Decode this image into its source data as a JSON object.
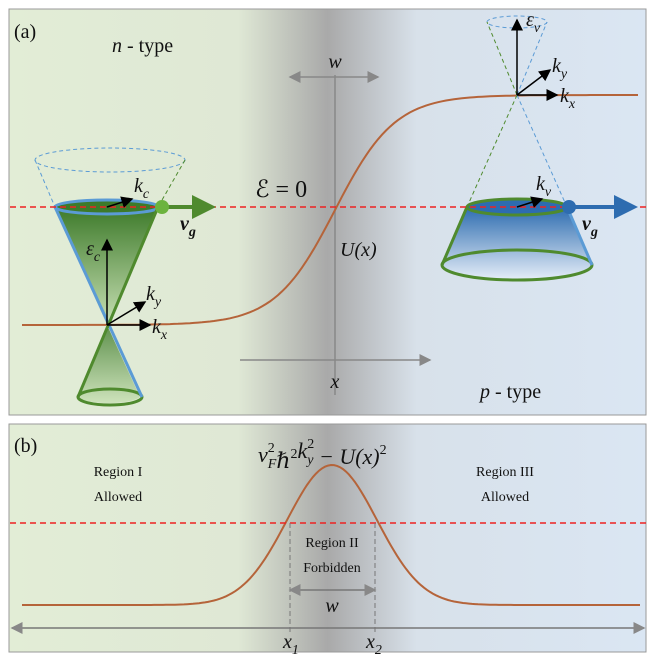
{
  "panel_a": {
    "label": "(a)",
    "n_type": {
      "var": "n",
      "text": " - type"
    },
    "p_type": {
      "var": "p",
      "text": " - type"
    },
    "width_label": "w",
    "x_axis_label": "x",
    "potential_label": "U(x)",
    "energy_label": "ℰ = 0",
    "left_cone": {
      "energy": {
        "base": "ε",
        "sub": "c"
      },
      "kx": {
        "base": "k",
        "sub": "x"
      },
      "ky": {
        "base": "k",
        "sub": "y"
      },
      "k": {
        "base": "k",
        "sub": "c"
      },
      "velocity": {
        "base": "v",
        "sub": "g"
      }
    },
    "right_cone": {
      "energy": {
        "base": "ε",
        "sub": "v"
      },
      "kx": {
        "base": "k",
        "sub": "x"
      },
      "ky": {
        "base": "k",
        "sub": "y"
      },
      "k": {
        "base": "k",
        "sub": "v"
      },
      "velocity": {
        "base": "v",
        "sub": "g"
      }
    }
  },
  "panel_b": {
    "label": "(b)",
    "formula": [
      {
        "base": "v",
        "sup": "2",
        "sub": "F"
      },
      {
        "base": "ℏ",
        "sup": "2"
      },
      {
        "base": "k",
        "sup": "2",
        "sub": "y"
      },
      {
        "base": " − U(x)",
        "sup": "2"
      }
    ],
    "regions": [
      {
        "name": "Region I",
        "state": "Allowed"
      },
      {
        "name": "Region II",
        "state": "Forbidden"
      },
      {
        "name": "Region III",
        "state": "Allowed"
      }
    ],
    "width_label": "w",
    "x1": {
      "base": "x",
      "sub": "1"
    },
    "x2": {
      "base": "x",
      "sub": "2"
    }
  }
}
